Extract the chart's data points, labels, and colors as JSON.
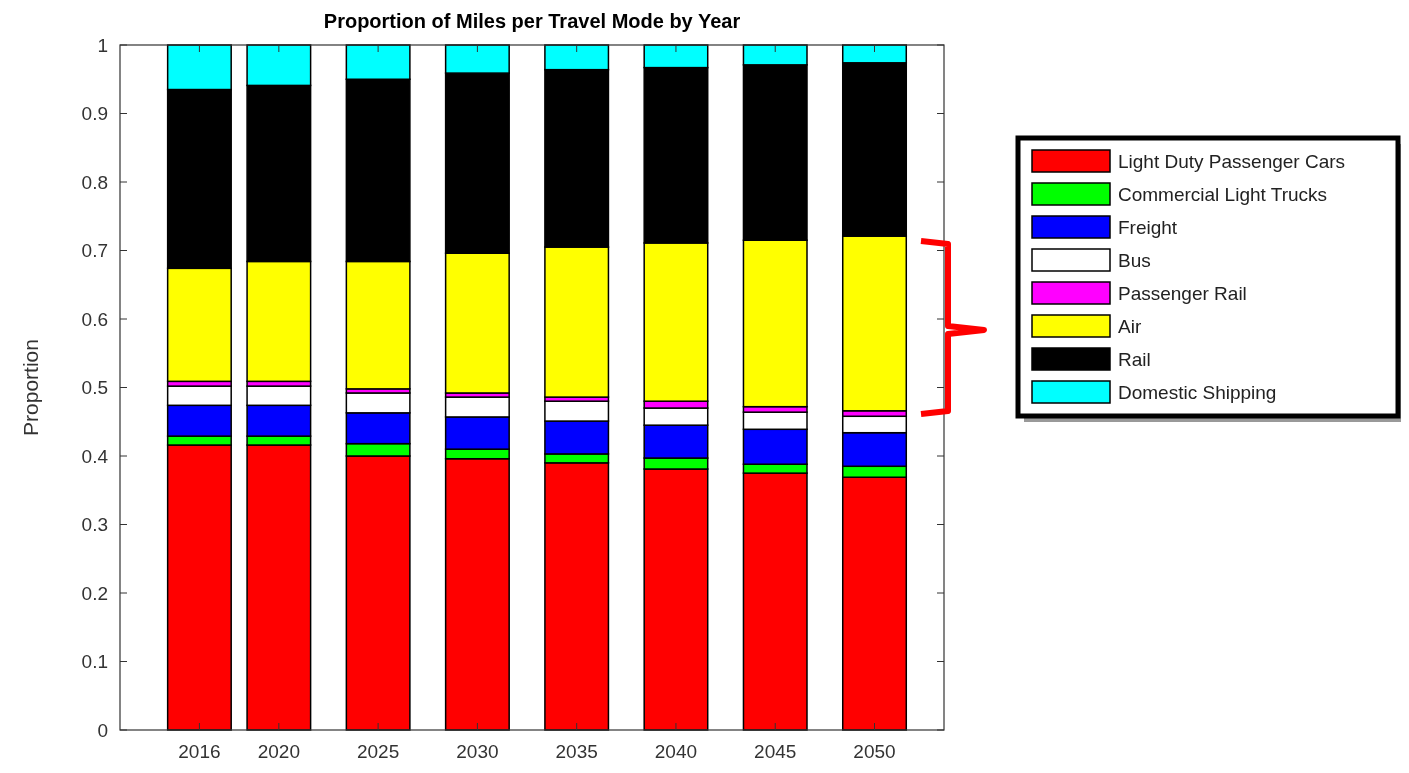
{
  "chart_data": {
    "type": "bar",
    "title": "Proportion of Miles per Travel Mode by Year",
    "ylabel": "Proportion",
    "stacked": true,
    "legend": "right",
    "grid": false,
    "x": [
      2016,
      2020,
      2025,
      2030,
      2035,
      2040,
      2045,
      2050
    ],
    "xlim": [
      2012,
      2053.5
    ],
    "xticks": [
      2016,
      2020,
      2025,
      2030,
      2035,
      2040,
      2045,
      2050
    ],
    "ylim": [
      0,
      1
    ],
    "yticks": [
      0,
      0.1,
      0.2,
      0.3,
      0.4,
      0.5,
      0.6,
      0.7,
      0.8,
      0.9,
      1
    ],
    "series": [
      {
        "name": "Light Duty Passenger Cars",
        "color": "#ff0000",
        "values": [
          0.416,
          0.416,
          0.4,
          0.396,
          0.39,
          0.381,
          0.375,
          0.369
        ]
      },
      {
        "name": "Commercial Light Trucks",
        "color": "#00ff00",
        "values": [
          0.013,
          0.013,
          0.018,
          0.014,
          0.013,
          0.016,
          0.013,
          0.016
        ]
      },
      {
        "name": "Freight",
        "color": "#0000ff",
        "values": [
          0.045,
          0.045,
          0.045,
          0.047,
          0.048,
          0.048,
          0.051,
          0.049
        ]
      },
      {
        "name": "Bus",
        "color": "#ffffff",
        "values": [
          0.028,
          0.028,
          0.029,
          0.029,
          0.029,
          0.025,
          0.025,
          0.024
        ]
      },
      {
        "name": "Passenger Rail",
        "color": "#ff00ff",
        "values": [
          0.007,
          0.007,
          0.006,
          0.006,
          0.006,
          0.01,
          0.008,
          0.008
        ]
      },
      {
        "name": "Air",
        "color": "#ffff00",
        "values": [
          0.165,
          0.175,
          0.186,
          0.204,
          0.219,
          0.231,
          0.243,
          0.255
        ]
      },
      {
        "name": "Rail",
        "color": "#000000",
        "values": [
          0.261,
          0.257,
          0.266,
          0.263,
          0.259,
          0.256,
          0.256,
          0.253
        ]
      },
      {
        "name": "Domestic Shipping",
        "color": "#00ffff",
        "values": [
          0.065,
          0.059,
          0.05,
          0.041,
          0.036,
          0.033,
          0.029,
          0.026
        ]
      }
    ]
  }
}
